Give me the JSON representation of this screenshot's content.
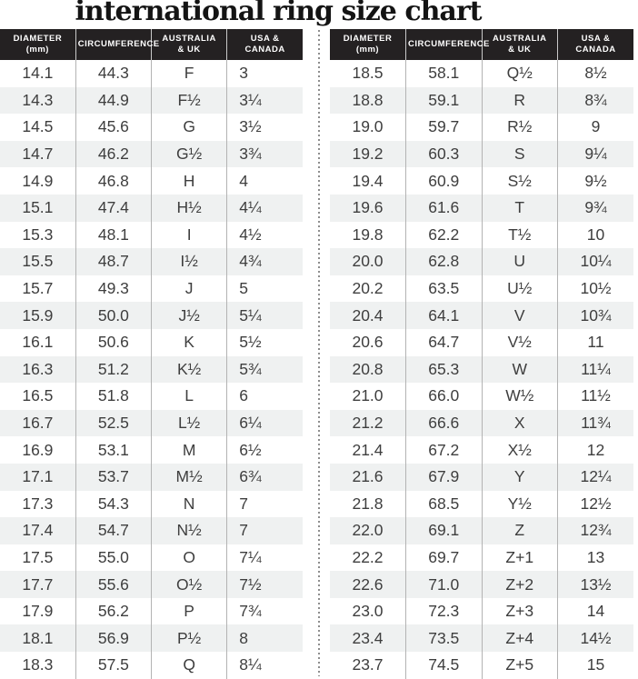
{
  "title": "international ring size chart",
  "colors": {
    "header_bg": "#242122",
    "header_text": "#ffffff",
    "header_separator": "#c9c9c9",
    "body_text": "#3e3e3e",
    "body_separator": "#b3b3b3",
    "stripe": "#eff1f1",
    "divider_dots": "#8d8d8d",
    "title_text": "#141414"
  },
  "chart_data": {
    "type": "table",
    "title": "international ring size chart",
    "columns": [
      {
        "key": "diameter",
        "line1": "DIAMETER",
        "line2": "(mm)"
      },
      {
        "key": "circumference",
        "line1": "CIRCUMFERENCE",
        "line2": ""
      },
      {
        "key": "australia-uk",
        "line1": "AUSTRALIA",
        "line2": "& UK"
      },
      {
        "key": "usa-canada",
        "line1": "USA &",
        "line2": "CANADA"
      }
    ],
    "left_rows": [
      [
        "14.1",
        "44.3",
        "F",
        "3"
      ],
      [
        "14.3",
        "44.9",
        "F½",
        "3¼"
      ],
      [
        "14.5",
        "45.6",
        "G",
        "3½"
      ],
      [
        "14.7",
        "46.2",
        "G½",
        "3¾"
      ],
      [
        "14.9",
        "46.8",
        "H",
        "4"
      ],
      [
        "15.1",
        "47.4",
        "H½",
        "4¼"
      ],
      [
        "15.3",
        "48.1",
        "I",
        "4½"
      ],
      [
        "15.5",
        "48.7",
        "I½",
        "4¾"
      ],
      [
        "15.7",
        "49.3",
        "J",
        "5"
      ],
      [
        "15.9",
        "50.0",
        "J½",
        "5¼"
      ],
      [
        "16.1",
        "50.6",
        "K",
        "5½"
      ],
      [
        "16.3",
        "51.2",
        "K½",
        "5¾"
      ],
      [
        "16.5",
        "51.8",
        "L",
        "6"
      ],
      [
        "16.7",
        "52.5",
        "L½",
        "6¼"
      ],
      [
        "16.9",
        "53.1",
        "M",
        "6½"
      ],
      [
        "17.1",
        "53.7",
        "M½",
        "6¾"
      ],
      [
        "17.3",
        "54.3",
        "N",
        "7"
      ],
      [
        "17.4",
        "54.7",
        "N½",
        "7"
      ],
      [
        "17.5",
        "55.0",
        "O",
        "7¼"
      ],
      [
        "17.7",
        "55.6",
        "O½",
        "7½"
      ],
      [
        "17.9",
        "56.2",
        "P",
        "7¾"
      ],
      [
        "18.1",
        "56.9",
        "P½",
        "8"
      ],
      [
        "18.3",
        "57.5",
        "Q",
        "8¼"
      ]
    ],
    "right_rows": [
      [
        "18.5",
        "58.1",
        "Q½",
        "8½"
      ],
      [
        "18.8",
        "59.1",
        "R",
        "8¾"
      ],
      [
        "19.0",
        "59.7",
        "R½",
        "9"
      ],
      [
        "19.2",
        "60.3",
        "S",
        "9¼"
      ],
      [
        "19.4",
        "60.9",
        "S½",
        "9½"
      ],
      [
        "19.6",
        "61.6",
        "T",
        "9¾"
      ],
      [
        "19.8",
        "62.2",
        "T½",
        "10"
      ],
      [
        "20.0",
        "62.8",
        "U",
        "10¼"
      ],
      [
        "20.2",
        "63.5",
        "U½",
        "10½"
      ],
      [
        "20.4",
        "64.1",
        "V",
        "10¾"
      ],
      [
        "20.6",
        "64.7",
        "V½",
        "11"
      ],
      [
        "20.8",
        "65.3",
        "W",
        "11¼"
      ],
      [
        "21.0",
        "66.0",
        "W½",
        "11½"
      ],
      [
        "21.2",
        "66.6",
        "X",
        "11¾"
      ],
      [
        "21.4",
        "67.2",
        "X½",
        "12"
      ],
      [
        "21.6",
        "67.9",
        "Y",
        "12¼"
      ],
      [
        "21.8",
        "68.5",
        "Y½",
        "12½"
      ],
      [
        "22.0",
        "69.1",
        "Z",
        "12¾"
      ],
      [
        "22.2",
        "69.7",
        "Z+1",
        "13"
      ],
      [
        "22.6",
        "71.0",
        "Z+2",
        "13½"
      ],
      [
        "23.0",
        "72.3",
        "Z+3",
        "14"
      ],
      [
        "23.4",
        "73.5",
        "Z+4",
        "14½"
      ],
      [
        "23.7",
        "74.5",
        "Z+5",
        "15"
      ]
    ]
  }
}
